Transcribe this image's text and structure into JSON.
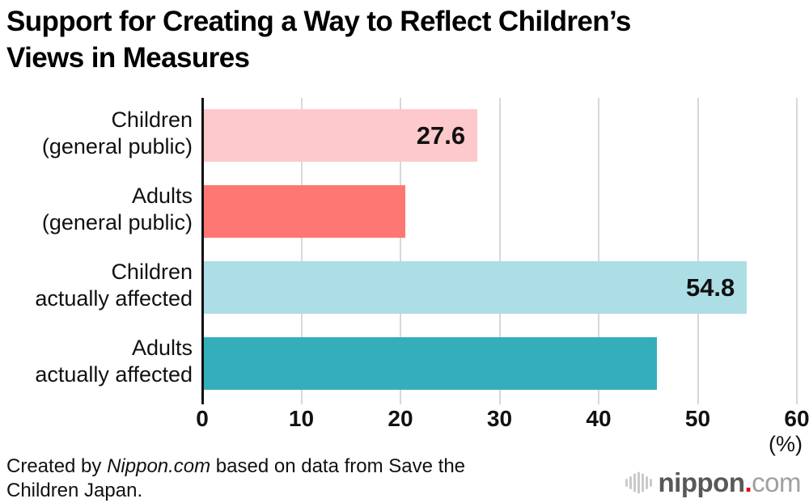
{
  "header": {
    "title_line1": "Support for Creating a Way to Reflect Children’s",
    "title_line2": "Views in Measures"
  },
  "chart_data": {
    "type": "bar",
    "orientation": "horizontal",
    "title": "Support for Creating a Way to Reflect Children’s Views in Measures",
    "categories": [
      "Children (general public)",
      "Adults (general public)",
      "Children actually affected",
      "Adults actually affected"
    ],
    "category_lines": [
      [
        "Children",
        "(general public)"
      ],
      [
        "Adults",
        "(general public)"
      ],
      [
        "Children",
        "actually affected"
      ],
      [
        "Adults",
        "actually affected"
      ]
    ],
    "values": [
      27.6,
      20.3,
      54.8,
      45.7
    ],
    "value_labels": [
      "27.6",
      "",
      "54.8",
      ""
    ],
    "bar_colors": [
      "#fec9ca",
      "#ff7773",
      "#aedee5",
      "#35aebc"
    ],
    "xlim": [
      0,
      60
    ],
    "x_ticks": [
      0,
      10,
      20,
      30,
      40,
      50,
      60
    ],
    "x_unit": "(%)",
    "grid": true,
    "gridline_color": "#d8d8d8",
    "axis_color": "#111111",
    "legend": "none"
  },
  "footer": {
    "credit_prefix": "Created by ",
    "credit_source": "Nippon.com",
    "credit_line1_rest": " based on data from Save the",
    "credit_line2": "Children Japan."
  },
  "logo": {
    "icon": "soundwave-bars-icon",
    "name_part1": "nippon",
    "dot": ".",
    "name_part2": "com",
    "dot_color": "#e60012"
  }
}
